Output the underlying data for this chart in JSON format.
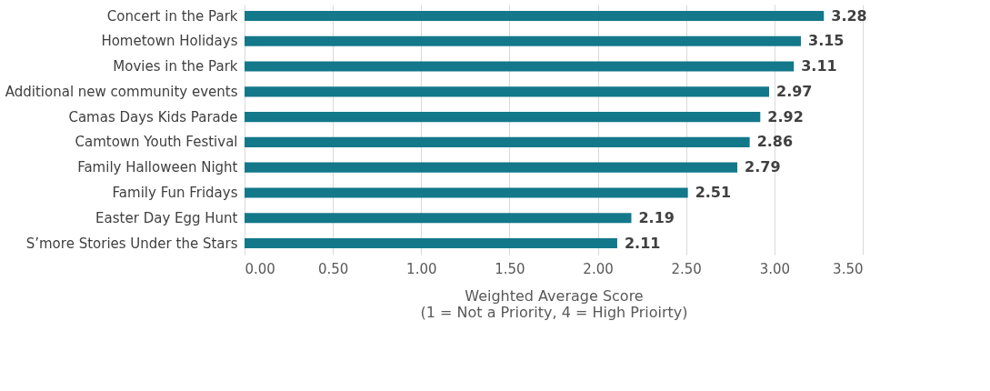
{
  "chart_data": {
    "type": "bar",
    "orientation": "horizontal",
    "categories": [
      "Concert in the Park",
      "Hometown Holidays",
      "Movies in the Park",
      "Additional new community events",
      "Camas Days Kids Parade",
      "Camtown Youth Festival",
      "Family Halloween Night",
      "Family Fun Fridays",
      "Easter Day Egg Hunt",
      "S’more Stories Under the Stars"
    ],
    "values": [
      3.28,
      3.15,
      3.11,
      2.97,
      2.92,
      2.86,
      2.79,
      2.51,
      2.19,
      2.11
    ],
    "color": "#13788a",
    "xlim": [
      0,
      3.5
    ],
    "xticks": [
      {
        "value": 0,
        "label": "0.00"
      },
      {
        "value": 0.5,
        "label": "0.50"
      },
      {
        "value": 1,
        "label": "1.00"
      },
      {
        "value": 1.5,
        "label": "1.50"
      },
      {
        "value": 2,
        "label": "2.00"
      },
      {
        "value": 2.5,
        "label": "2.50"
      },
      {
        "value": 3,
        "label": "3.00"
      },
      {
        "value": 3.5,
        "label": "3.50"
      }
    ],
    "xlabel": "Weighted Average Score\n(1 = Not a Priority, 4 = High Prioirty)",
    "grid": "x",
    "data_labels": true
  }
}
